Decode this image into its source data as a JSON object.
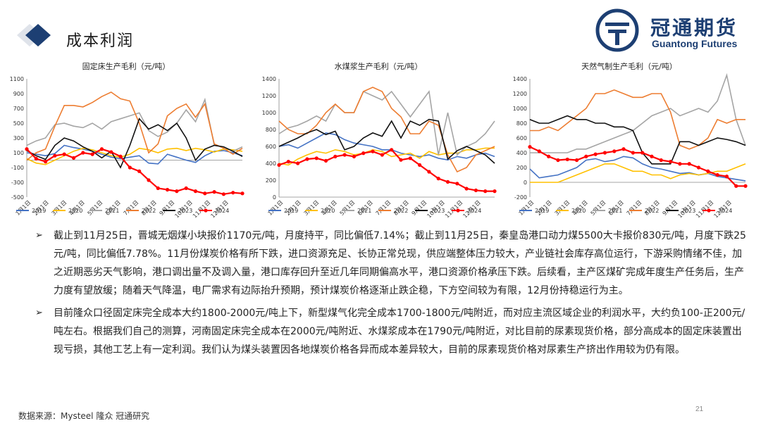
{
  "header": {
    "title": "成本利润"
  },
  "logo": {
    "name_cn": "冠通期货",
    "name_en": "Guantong Futures"
  },
  "series_colors": {
    "2019": "#4472c4",
    "2020": "#ffc000",
    "2021": "#a5a5a5",
    "2022": "#ed7d31",
    "2023": "#111111",
    "2024": "#ff0000"
  },
  "chart_data": [
    {
      "type": "line",
      "title": "固定床生产毛利（元/吨）",
      "ylim": [
        -500,
        1100
      ],
      "yticks": [
        -500,
        -300,
        -100,
        100,
        300,
        500,
        700,
        900,
        1100
      ],
      "xticks": [
        "1月1日",
        "2月1日",
        "3月1日",
        "4月1日",
        "5月1日",
        "6月1日",
        "7月1日",
        "8月1日",
        "9月1日",
        "10月1日",
        "11月1日",
        "12月1日"
      ],
      "grid": false,
      "legend": "bottom",
      "series": [
        {
          "name": "2019",
          "values": [
            100,
            80,
            60,
            90,
            200,
            170,
            150,
            120,
            80,
            40,
            20,
            40,
            60,
            -40,
            -50,
            80,
            40,
            0,
            -30,
            60,
            120,
            130,
            100,
            60
          ]
        },
        {
          "name": "2020",
          "values": [
            20,
            -40,
            -60,
            0,
            60,
            120,
            160,
            140,
            100,
            60,
            40,
            80,
            160,
            140,
            100,
            150,
            160,
            130,
            160,
            140,
            110,
            150,
            140,
            120
          ]
        },
        {
          "name": "2021",
          "values": [
            200,
            260,
            300,
            480,
            500,
            460,
            440,
            500,
            420,
            520,
            560,
            600,
            640,
            400,
            320,
            380,
            500,
            680,
            520,
            820,
            200,
            180,
            120,
            180
          ]
        },
        {
          "name": "2022",
          "values": [
            0,
            100,
            150,
            460,
            740,
            740,
            720,
            780,
            860,
            920,
            830,
            800,
            500,
            100,
            220,
            600,
            700,
            760,
            580,
            760,
            220,
            160,
            80,
            160
          ]
        },
        {
          "name": "2023",
          "values": [
            130,
            60,
            10,
            200,
            300,
            260,
            180,
            120,
            30,
            120,
            -100,
            200,
            560,
            420,
            480,
            400,
            500,
            300,
            0,
            150,
            200,
            180,
            120,
            50
          ]
        },
        {
          "name": "2024",
          "values": [
            150,
            20,
            -20,
            60,
            80,
            30,
            100,
            80,
            150,
            110,
            50,
            -100,
            -150,
            -270,
            -380,
            -400,
            -420,
            -380,
            -420,
            -450,
            -430,
            -460,
            -440,
            -450
          ]
        }
      ]
    },
    {
      "type": "line",
      "title": "水煤浆生产毛利（元/吨）",
      "ylim": [
        0,
        1400
      ],
      "yticks": [
        0,
        200,
        400,
        600,
        800,
        1000,
        1200,
        1400
      ],
      "xticks": [
        "1月1日",
        "2月1日",
        "3月1日",
        "4月1日",
        "5月1日",
        "6月1日",
        "7月1日",
        "8月1日",
        "9月1日",
        "10月1日",
        "11月1日",
        "12月1日"
      ],
      "grid": false,
      "legend": "bottom",
      "series": [
        {
          "name": "2019",
          "values": [
            600,
            620,
            580,
            640,
            700,
            760,
            740,
            680,
            640,
            620,
            600,
            560,
            560,
            520,
            500,
            480,
            500,
            460,
            440,
            480,
            460,
            500,
            520,
            480
          ]
        },
        {
          "name": "2020",
          "values": [
            400,
            380,
            450,
            500,
            540,
            520,
            560,
            540,
            500,
            520,
            560,
            540,
            480,
            500,
            520,
            460,
            540,
            500,
            520,
            520,
            560,
            560,
            580,
            580
          ]
        },
        {
          "name": "2021",
          "values": [
            750,
            820,
            850,
            900,
            960,
            900,
            1100,
            1000,
            1000,
            1250,
            1200,
            1150,
            1250,
            1100,
            950,
            1100,
            1250,
            500,
            1000,
            500,
            600,
            650,
            750,
            900
          ]
        },
        {
          "name": "2022",
          "values": [
            900,
            800,
            750,
            750,
            850,
            1000,
            1100,
            1000,
            1000,
            1250,
            1300,
            1250,
            1050,
            950,
            750,
            750,
            900,
            850,
            500,
            300,
            350,
            500,
            550,
            600
          ]
        },
        {
          "name": "2023",
          "values": [
            600,
            650,
            700,
            760,
            800,
            740,
            780,
            560,
            600,
            700,
            760,
            720,
            900,
            700,
            900,
            850,
            920,
            900,
            450,
            550,
            600,
            550,
            500,
            400
          ]
        },
        {
          "name": "2024",
          "values": [
            380,
            420,
            400,
            450,
            460,
            430,
            480,
            500,
            480,
            520,
            540,
            500,
            560,
            440,
            460,
            380,
            300,
            220,
            180,
            160,
            100,
            80,
            70,
            70
          ]
        }
      ]
    },
    {
      "type": "line",
      "title": "天然气制生产毛利（元/吨）",
      "ylim": [
        -200,
        1400
      ],
      "yticks": [
        -200,
        0,
        200,
        400,
        600,
        800,
        1000,
        1200,
        1400
      ],
      "xticks": [
        "1月1日",
        "2月1日",
        "3月1日",
        "4月1日",
        "5月1日",
        "6月1日",
        "7月1日",
        "8月1日",
        "9月1日",
        "10月1日",
        "11月1日",
        "12月1日"
      ],
      "grid": false,
      "legend": "bottom",
      "series": [
        {
          "name": "2019",
          "values": [
            180,
            60,
            80,
            100,
            150,
            200,
            300,
            320,
            280,
            300,
            350,
            330,
            250,
            200,
            180,
            150,
            120,
            130,
            100,
            120,
            80,
            60,
            40,
            20
          ]
        },
        {
          "name": "2020",
          "values": [
            0,
            0,
            0,
            0,
            50,
            100,
            150,
            200,
            250,
            250,
            200,
            150,
            150,
            100,
            100,
            50,
            100,
            120,
            100,
            120,
            150,
            150,
            200,
            250
          ]
        },
        {
          "name": "2021",
          "values": [
            400,
            400,
            400,
            400,
            400,
            450,
            450,
            500,
            550,
            600,
            650,
            700,
            800,
            900,
            950,
            1000,
            900,
            950,
            1000,
            950,
            1100,
            1450,
            850,
            500
          ]
        },
        {
          "name": "2022",
          "values": [
            700,
            700,
            750,
            700,
            800,
            900,
            1000,
            1200,
            1200,
            1250,
            1200,
            1150,
            1150,
            1200,
            1200,
            950,
            500,
            450,
            500,
            600,
            850,
            800,
            850,
            850
          ]
        },
        {
          "name": "2023",
          "values": [
            850,
            800,
            800,
            850,
            900,
            850,
            850,
            800,
            800,
            750,
            750,
            700,
            400,
            250,
            250,
            250,
            550,
            550,
            500,
            550,
            600,
            580,
            550,
            500
          ]
        },
        {
          "name": "2024",
          "values": [
            480,
            420,
            350,
            300,
            310,
            300,
            350,
            380,
            400,
            420,
            450,
            400,
            400,
            350,
            300,
            280,
            250,
            250,
            200,
            150,
            100,
            80,
            -50,
            -50
          ]
        }
      ]
    }
  ],
  "bullets": [
    "截止到11月25日，晋城无烟煤小块报价1170元/吨，月度持平，同比偏低7.14%；截止到11月25日，秦皇岛港口动力煤5500大卡报价830元/吨，月度下跌25元/吨，同比偏低7.78%。11月份煤炭价格有所下跌，进口资源充足、长协正常兑现，供应端整体压力较大，产业链社会库存高位运行，下游采购情绪不佳，加之近期恶劣天气影响，港口调出量不及调入量，港口库存回升至近几年同期偏高水平，港口资源价格承压下跌。后续看，主产区煤矿完成年度生产任务后，生产力度有望放缓；随着天气降温，电厂需求有边际抬升预期，预计煤炭价格逐渐止跌企稳，下方空间较为有限，12月份持稳运行为主。",
    "目前隆众口径固定床完全成本大约1800-2000元/吨上下，新型煤气化完全成本1700-1800元/吨附近，而对应主流区域企业的利润水平，大约负100-正200元/吨左右。根据我们自己的测算，河南固定床完全成本在2000元/吨附近、水煤浆成本在1790元/吨附近，对比目前的尿素现货价格，部分高成本的固定床装置出现亏损，其他工艺上有一定利润。我们认为煤头装置因各地煤炭价格各异而成本差异较大，目前的尿素现货价格对尿素生产挤出作用较为仍有限。"
  ],
  "footer": {
    "source": "数据来源：Mysteel 隆众 冠通研究",
    "page": "21"
  }
}
